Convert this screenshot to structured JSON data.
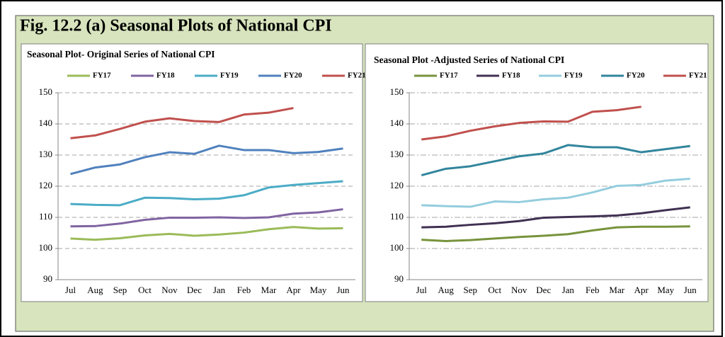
{
  "title": "Fig. 12.2 (a) Seasonal Plots of National CPI",
  "chart_data": [
    {
      "type": "line",
      "title": "Seasonal Plot- Original Series of  National CPI",
      "categories": [
        "Jul",
        "Aug",
        "Sep",
        "Oct",
        "Nov",
        "Dec",
        "Jan",
        "Feb",
        "Mar",
        "Apr",
        "May",
        "Jun"
      ],
      "ylim": [
        90,
        150
      ],
      "yticks": [
        90,
        100,
        110,
        120,
        130,
        140,
        150
      ],
      "grid": "dashed",
      "legend": "top",
      "series": [
        {
          "name": "FY17",
          "color": "#9bbb59",
          "values": [
            103.2,
            102.8,
            103.3,
            104.2,
            104.7,
            104.1,
            104.5,
            105.1,
            106.2,
            106.9,
            106.4,
            106.5
          ]
        },
        {
          "name": "FY18",
          "color": "#8064a2",
          "values": [
            107.1,
            107.2,
            108.0,
            109.2,
            109.9,
            109.9,
            110.0,
            109.8,
            110.0,
            111.2,
            111.6,
            112.6
          ]
        },
        {
          "name": "FY19",
          "color": "#4bacc6",
          "values": [
            114.3,
            114.0,
            113.9,
            116.3,
            116.2,
            115.8,
            116.0,
            117.1,
            119.6,
            120.4,
            121.0,
            121.6
          ]
        },
        {
          "name": "FY20",
          "color": "#4f81bd",
          "values": [
            123.9,
            126.0,
            127.0,
            129.3,
            130.9,
            130.4,
            133.0,
            131.6,
            131.6,
            130.6,
            131.0,
            132.1
          ]
        },
        {
          "name": "FY21",
          "color": "#c0504d",
          "values": [
            135.4,
            136.3,
            138.4,
            140.7,
            141.8,
            140.9,
            140.6,
            143.0,
            143.6,
            145.1,
            null,
            null
          ]
        }
      ]
    },
    {
      "type": "line",
      "title": "Seasonal Plot -Adjusted Series of  National CPI",
      "categories": [
        "Jul",
        "Aug",
        "Sep",
        "Oct",
        "Nov",
        "Dec",
        "Jan",
        "Feb",
        "Mar",
        "Apr",
        "May",
        "Jun"
      ],
      "ylim": [
        90,
        150
      ],
      "yticks": [
        90,
        100,
        110,
        120,
        130,
        140,
        150
      ],
      "grid": "dash-dot",
      "legend": "top",
      "series": [
        {
          "name": "FY17",
          "color": "#77933c",
          "values": [
            102.8,
            102.4,
            102.7,
            103.2,
            103.7,
            104.1,
            104.6,
            105.8,
            106.8,
            107.0,
            107.0,
            107.1
          ]
        },
        {
          "name": "FY18",
          "color": "#403152",
          "values": [
            106.8,
            107.0,
            107.6,
            108.1,
            108.8,
            109.9,
            110.1,
            110.3,
            110.6,
            111.3,
            112.3,
            113.2
          ]
        },
        {
          "name": "FY19",
          "color": "#93cddd",
          "values": [
            113.9,
            113.6,
            113.4,
            115.1,
            114.9,
            115.8,
            116.3,
            118.0,
            120.1,
            120.4,
            121.8,
            122.4
          ]
        },
        {
          "name": "FY20",
          "color": "#31859c",
          "values": [
            123.5,
            125.6,
            126.4,
            128.0,
            129.6,
            130.5,
            133.2,
            132.5,
            132.5,
            130.9,
            131.9,
            132.9
          ]
        },
        {
          "name": "FY21",
          "color": "#c0504d",
          "values": [
            135.0,
            136.0,
            137.8,
            139.2,
            140.3,
            140.8,
            140.7,
            143.9,
            144.4,
            145.5,
            null,
            null
          ]
        }
      ]
    }
  ]
}
